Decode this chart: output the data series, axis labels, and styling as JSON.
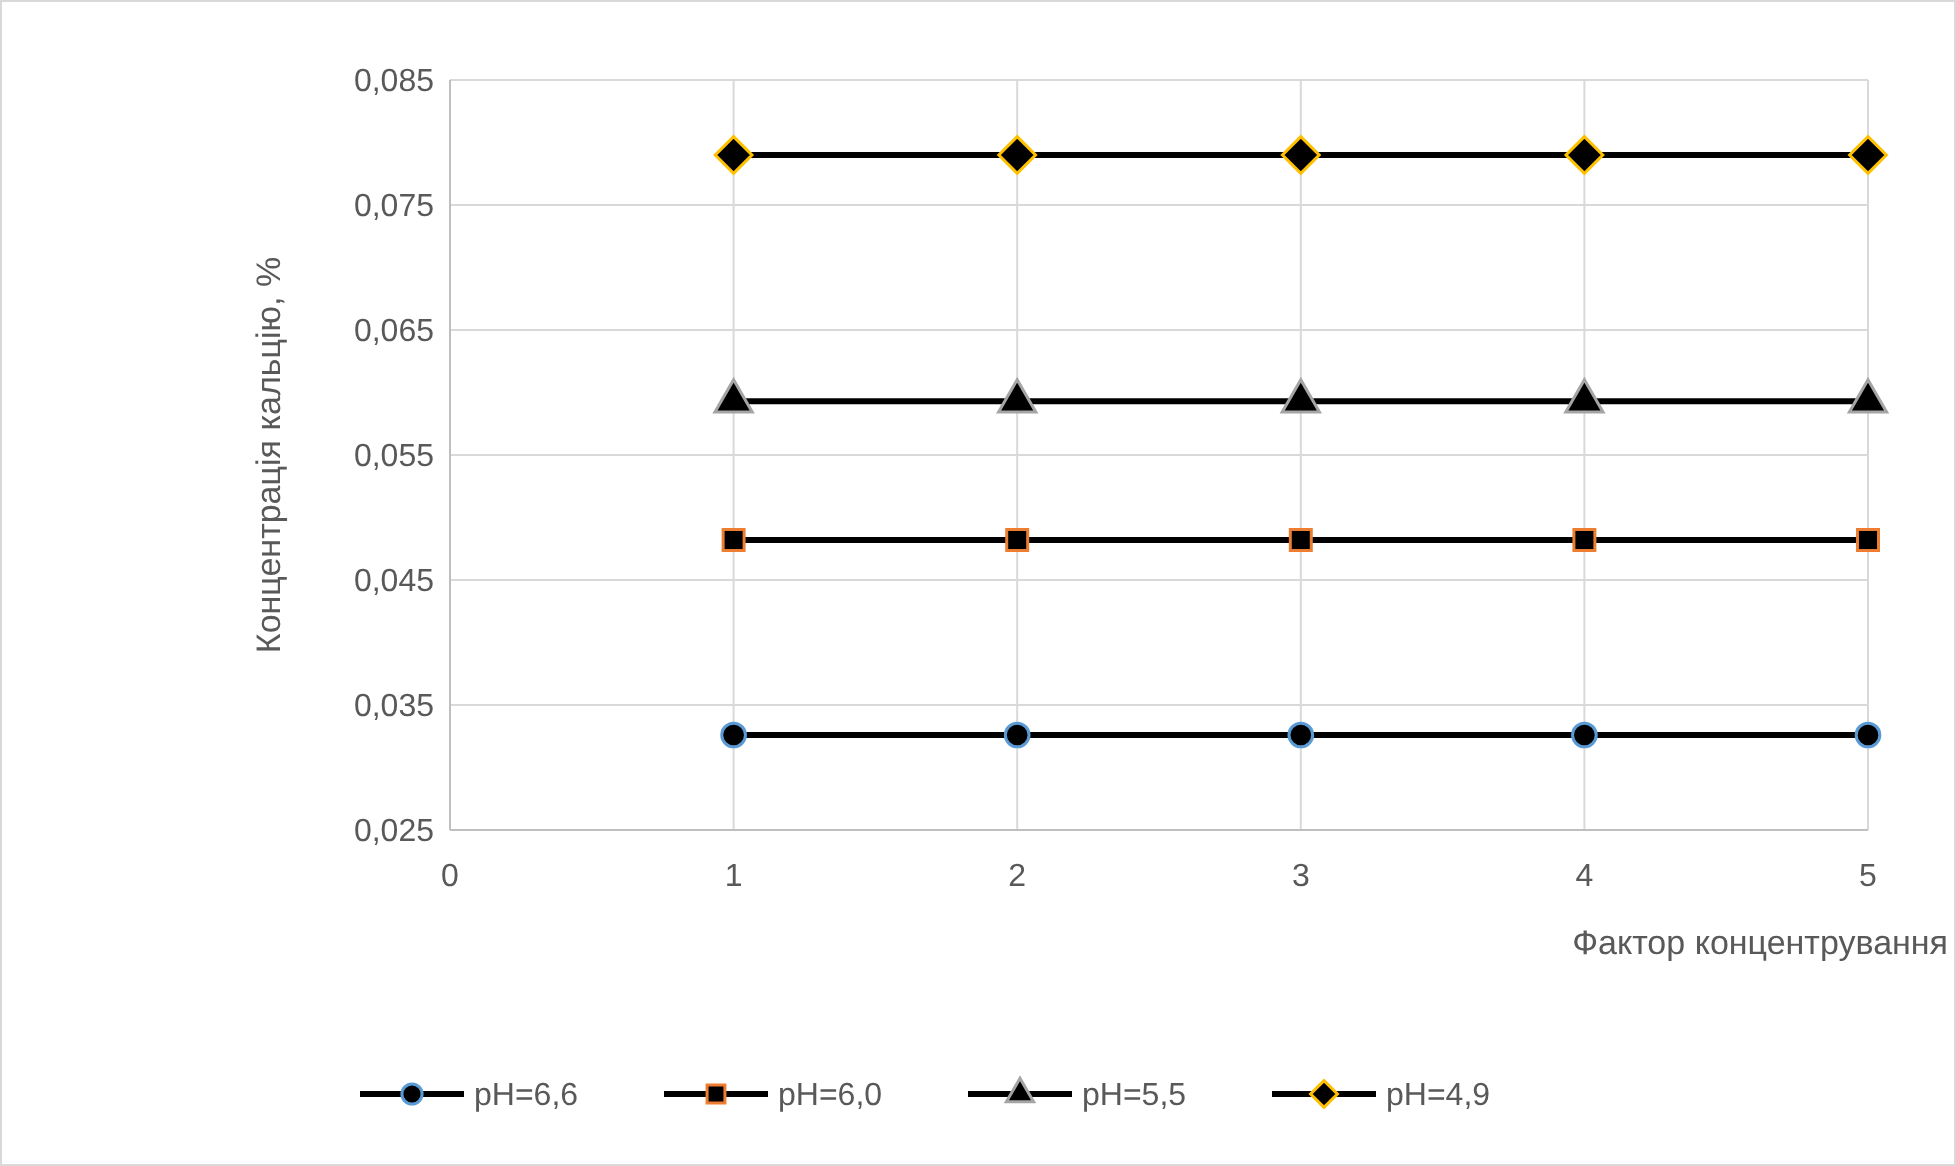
{
  "chart_data": {
    "type": "line",
    "xlabel": "Фактор концентрування",
    "ylabel": "Концентрація кальцію, %",
    "x": [
      1,
      2,
      3,
      4,
      5
    ],
    "series": [
      {
        "name": "pH=6,6",
        "color": "#5b9bd5",
        "marker": "circle",
        "values": [
          0.0326,
          0.0326,
          0.0326,
          0.0326,
          0.0326
        ]
      },
      {
        "name": "pH=6,0",
        "color": "#ed7d31",
        "marker": "square",
        "values": [
          0.0482,
          0.0482,
          0.0482,
          0.0482,
          0.0482
        ]
      },
      {
        "name": "pH=5,5",
        "color": "#a5a5a5",
        "marker": "triangle",
        "values": [
          0.0593,
          0.0593,
          0.0593,
          0.0593,
          0.0593
        ]
      },
      {
        "name": "pH=4,9",
        "color": "#ffc000",
        "marker": "diamond",
        "values": [
          0.079,
          0.079,
          0.079,
          0.079,
          0.079
        ]
      }
    ],
    "xlim": [
      0,
      5
    ],
    "xticks": [
      0,
      1,
      2,
      3,
      4,
      5
    ],
    "ylim": [
      0.025,
      0.085
    ],
    "yticks": [
      {
        "value": 0.025,
        "label": "0,025"
      },
      {
        "value": 0.035,
        "label": "0,035"
      },
      {
        "value": 0.045,
        "label": "0,045"
      },
      {
        "value": 0.055,
        "label": "0,055"
      },
      {
        "value": 0.065,
        "label": "0,065"
      },
      {
        "value": 0.075,
        "label": "0,075"
      },
      {
        "value": 0.085,
        "label": "0,085"
      }
    ],
    "grid": true,
    "legend": "bottom",
    "line_style": "solid"
  }
}
